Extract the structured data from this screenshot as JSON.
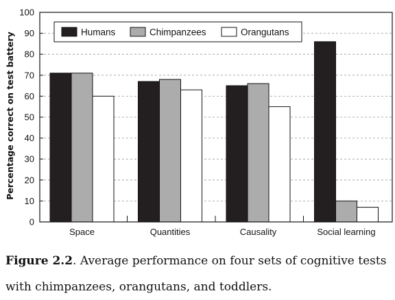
{
  "chart_data": {
    "type": "bar",
    "categories": [
      "Space",
      "Quantities",
      "Causality",
      "Social learning"
    ],
    "series": [
      {
        "name": "Humans",
        "values": [
          71,
          67,
          65,
          86
        ],
        "color": "#231f20"
      },
      {
        "name": "Chimpanzees",
        "values": [
          71,
          68,
          66,
          10
        ],
        "color": "#acacac"
      },
      {
        "name": "Orangutans",
        "values": [
          60,
          63,
          55,
          7
        ],
        "color": "#ffffff"
      }
    ],
    "ylabel": "Percentage correct on test battery",
    "xlabel": "",
    "ylim": [
      0,
      100
    ],
    "yticks": [
      0,
      10,
      20,
      30,
      40,
      50,
      60,
      70,
      80,
      90,
      100
    ],
    "grid": "horizontal dashed",
    "legend_position": "top-left"
  },
  "caption": {
    "label": "Figure 2.2",
    "text": ". Average performance on four sets of cognitive tests with chimpanzees, orangutans, and toddlers."
  }
}
